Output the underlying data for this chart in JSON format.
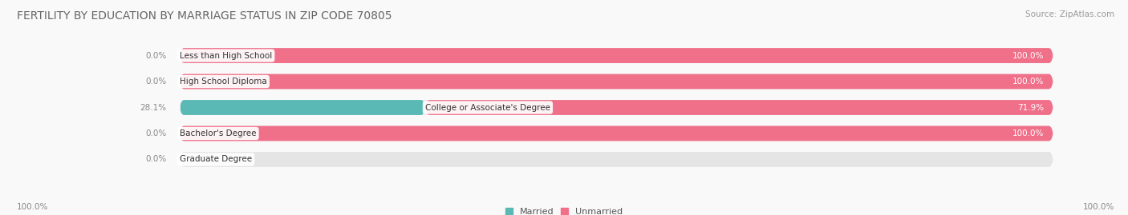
{
  "title": "FERTILITY BY EDUCATION BY MARRIAGE STATUS IN ZIP CODE 70805",
  "source": "Source: ZipAtlas.com",
  "categories": [
    "Less than High School",
    "High School Diploma",
    "College or Associate's Degree",
    "Bachelor's Degree",
    "Graduate Degree"
  ],
  "married": [
    0.0,
    0.0,
    28.1,
    0.0,
    0.0
  ],
  "unmarried": [
    100.0,
    100.0,
    71.9,
    100.0,
    0.0
  ],
  "married_color": "#5ab9b5",
  "unmarried_color": "#f0708a",
  "bar_bg_color": "#e5e5e5",
  "bg_color": "#f9f9f9",
  "row_bg_color": "#f0f0f0",
  "title_fontsize": 10,
  "source_fontsize": 7.5,
  "label_fontsize": 7.5,
  "pct_fontsize": 7.5,
  "legend_fontsize": 8,
  "total_width": 100,
  "label_split": 30,
  "x_left_label": "100.0%",
  "x_right_label": "100.0%"
}
